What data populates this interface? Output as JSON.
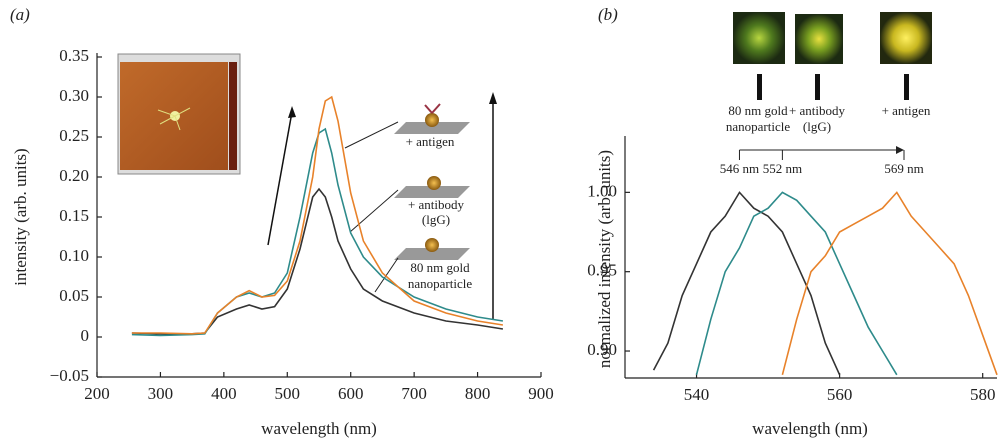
{
  "chart_data": [
    {
      "type": "line",
      "panel_label": "(a)",
      "x_label": "wavelength (nm)",
      "y_label": "intensity (arb. units)",
      "xlim": [
        200,
        900
      ],
      "xticks": [
        200,
        300,
        400,
        500,
        600,
        700,
        800,
        900
      ],
      "ylim": [
        -0.05,
        0.35
      ],
      "yticks": [
        {
          "value": -0.05,
          "label": "−0.05"
        },
        0,
        0.05,
        {
          "value": 0.1,
          "label": "0.10"
        },
        0.15,
        {
          "value": 0.2,
          "label": "0.20"
        },
        0.25,
        {
          "value": 0.3,
          "label": "0.30"
        },
        0.35
      ],
      "x": [
        255,
        300,
        350,
        370,
        390,
        420,
        440,
        460,
        480,
        500,
        520,
        540,
        550,
        560,
        570,
        580,
        600,
        620,
        650,
        700,
        750,
        800,
        840
      ],
      "series": [
        {
          "color": "#333333",
          "values": [
            0.005,
            0.004,
            0.004,
            0.005,
            0.025,
            0.035,
            0.04,
            0.035,
            0.038,
            0.06,
            0.11,
            0.175,
            0.185,
            0.175,
            0.15,
            0.12,
            0.085,
            0.06,
            0.045,
            0.03,
            0.02,
            0.015,
            0.01
          ]
        },
        {
          "color": "#2e8b8b",
          "values": [
            0.003,
            0.002,
            0.003,
            0.004,
            0.03,
            0.05,
            0.055,
            0.05,
            0.055,
            0.08,
            0.15,
            0.23,
            0.255,
            0.26,
            0.23,
            0.19,
            0.13,
            0.1,
            0.075,
            0.05,
            0.035,
            0.025,
            0.02
          ]
        },
        {
          "color": "#e8822a",
          "values": [
            0.005,
            0.005,
            0.004,
            0.005,
            0.03,
            0.05,
            0.058,
            0.05,
            0.052,
            0.07,
            0.12,
            0.2,
            0.26,
            0.295,
            0.3,
            0.27,
            0.18,
            0.12,
            0.08,
            0.045,
            0.03,
            0.02,
            0.015
          ]
        }
      ],
      "annotations": [
        [
          "+ antigen"
        ],
        [
          "+ antibody",
          "(lgG)"
        ],
        [
          "80 nm gold",
          "nanoparticle"
        ]
      ]
    },
    {
      "type": "line",
      "panel_label": "(b)",
      "x_label": "wavelength (nm)",
      "y_label": "normalized intensity (arb. units)",
      "xlim": [
        530,
        582
      ],
      "xticks": [
        540,
        560,
        580
      ],
      "ylim": [
        0.883,
        1.033
      ],
      "yticks": [
        {
          "value": 0.9,
          "label": "0.90"
        },
        0.95,
        {
          "value": 1,
          "label": "1.00"
        }
      ],
      "x": [
        534,
        536,
        538,
        540,
        542,
        544,
        546,
        548,
        550,
        552,
        554,
        556,
        558,
        560,
        562,
        564,
        566,
        568,
        570,
        572,
        574,
        576,
        578,
        580,
        582
      ],
      "series": [
        {
          "color": "#333333",
          "values": [
            0.888,
            0.905,
            0.935,
            0.955,
            0.975,
            0.985,
            1.0,
            0.99,
            0.985,
            0.975,
            0.955,
            0.935,
            0.905,
            0.885,
            null,
            null,
            null,
            null,
            null,
            null,
            null,
            null,
            null,
            null,
            null
          ]
        },
        {
          "color": "#2e8b8b",
          "values": [
            null,
            null,
            null,
            0.885,
            0.92,
            0.95,
            0.965,
            0.985,
            0.99,
            1.0,
            0.995,
            0.985,
            0.975,
            0.955,
            0.935,
            0.915,
            0.9,
            0.885,
            null,
            null,
            null,
            null,
            null,
            null,
            null
          ]
        },
        {
          "color": "#e8822a",
          "values": [
            null,
            null,
            null,
            null,
            null,
            null,
            null,
            null,
            null,
            0.885,
            0.92,
            0.95,
            0.96,
            0.975,
            0.98,
            0.985,
            0.99,
            1.0,
            0.985,
            0.975,
            0.965,
            0.955,
            0.935,
            0.91,
            0.885
          ]
        }
      ],
      "peak_markers": [
        {
          "value": 546,
          "label": "546 nm"
        },
        {
          "value": 552,
          "label": "552 nm"
        },
        {
          "value": 569,
          "label": "569 nm"
        }
      ],
      "annotations": [
        [
          "80 nm gold",
          "nanoparticle"
        ],
        [
          "+ antibody",
          "(lgG)"
        ],
        [
          "+ antigen"
        ]
      ]
    }
  ]
}
